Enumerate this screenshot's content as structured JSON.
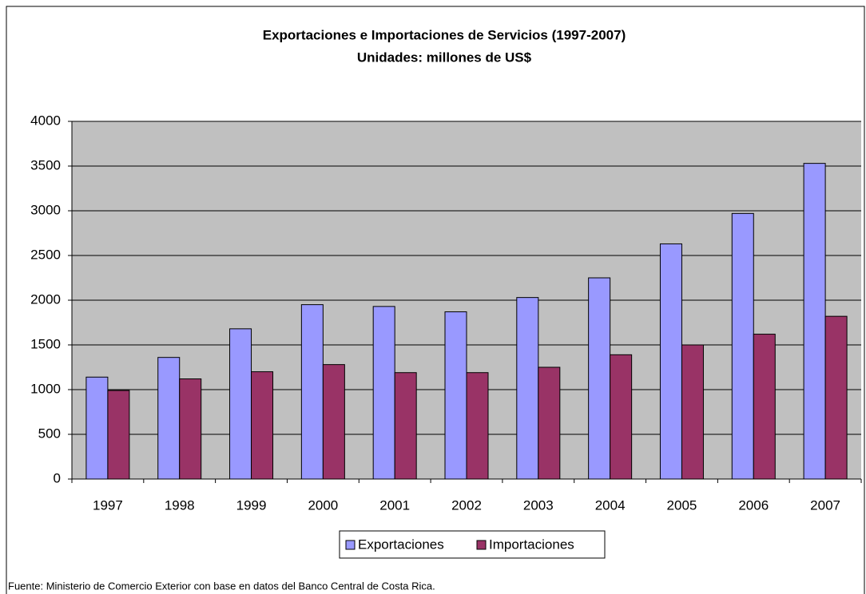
{
  "chart_data": {
    "type": "bar",
    "title": "Exportaciones e Importaciones de Servicios (1997-2007)",
    "subtitle": "Unidades: millones de US$",
    "categories": [
      "1997",
      "1998",
      "1999",
      "2000",
      "2001",
      "2002",
      "2003",
      "2004",
      "2005",
      "2006",
      "2007"
    ],
    "series": [
      {
        "name": "Exportaciones",
        "color": "#9999ff",
        "values": [
          1140,
          1360,
          1680,
          1950,
          1930,
          1870,
          2030,
          2250,
          2630,
          2970,
          3530
        ]
      },
      {
        "name": "Importaciones",
        "color": "#993366",
        "values": [
          990,
          1120,
          1200,
          1280,
          1190,
          1190,
          1250,
          1390,
          1500,
          1620,
          1820
        ]
      }
    ],
    "ylim": [
      0,
      4000
    ],
    "yticks": [
      0,
      500,
      1000,
      1500,
      2000,
      2500,
      3000,
      3500,
      4000
    ],
    "grid": true,
    "legend": "bottom",
    "source": "Fuente: Ministerio de Comercio Exterior con base en datos del Banco Central de Costa Rica."
  }
}
